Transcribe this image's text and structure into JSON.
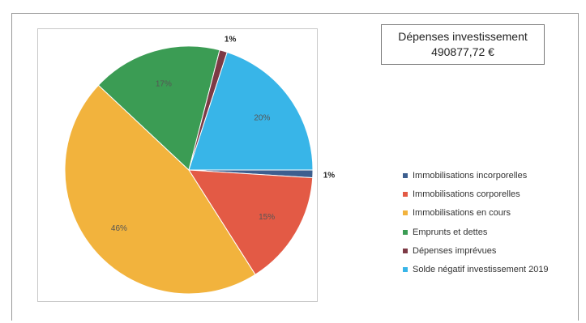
{
  "chart_data": {
    "type": "pie",
    "title": "Dépenses investissement",
    "total": "490877,72 €",
    "slices": [
      {
        "label": "Immobilisations incorporelles",
        "value": 1,
        "display": "1%",
        "color": "#3d5f8f"
      },
      {
        "label": "Immobilisations corporelles",
        "value": 15,
        "display": "15%",
        "color": "#e35a45"
      },
      {
        "label": "Immobilisations en cours",
        "value": 46,
        "display": "46%",
        "color": "#f2b33d"
      },
      {
        "label": "Emprunts et dettes",
        "value": 17,
        "display": "17%",
        "color": "#3b9c54"
      },
      {
        "label": "Dépenses imprévues",
        "value": 1,
        "display": "1%",
        "color": "#7d3a45"
      },
      {
        "label": "Solde négatif investissement 2019",
        "value": 20,
        "display": "20%",
        "color": "#38b5e8"
      }
    ],
    "legend_position": "right"
  }
}
